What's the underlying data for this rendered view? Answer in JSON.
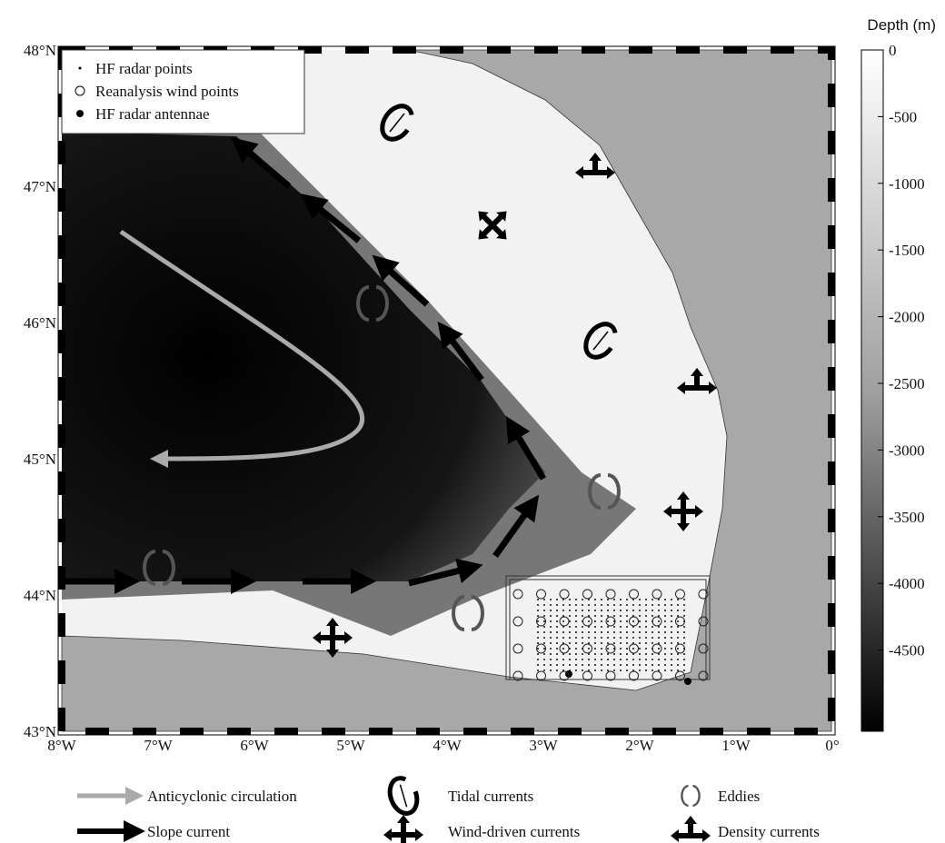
{
  "colorbar": {
    "title": "Depth (m)",
    "ticks": [
      0,
      -500,
      -1000,
      -1500,
      -2000,
      -2500,
      -3000,
      -3500,
      -4000,
      -4500
    ]
  },
  "axes": {
    "lat_labels": [
      "48°N",
      "47°N",
      "46°N",
      "45°N",
      "44°N",
      "43°N"
    ],
    "lon_labels": [
      "8°W",
      "7°W",
      "6°W",
      "5°W",
      "4°W",
      "3°W",
      "2°W",
      "1°W",
      "0°"
    ]
  },
  "inset_legend": [
    "HF radar points",
    "Reanalysis wind points",
    "HF radar antennae"
  ],
  "bottom_legend": [
    "Anticyclonic circulation",
    "Tidal currents",
    "Eddies",
    "Slope current",
    "Wind-driven currents",
    "Density currents"
  ]
}
